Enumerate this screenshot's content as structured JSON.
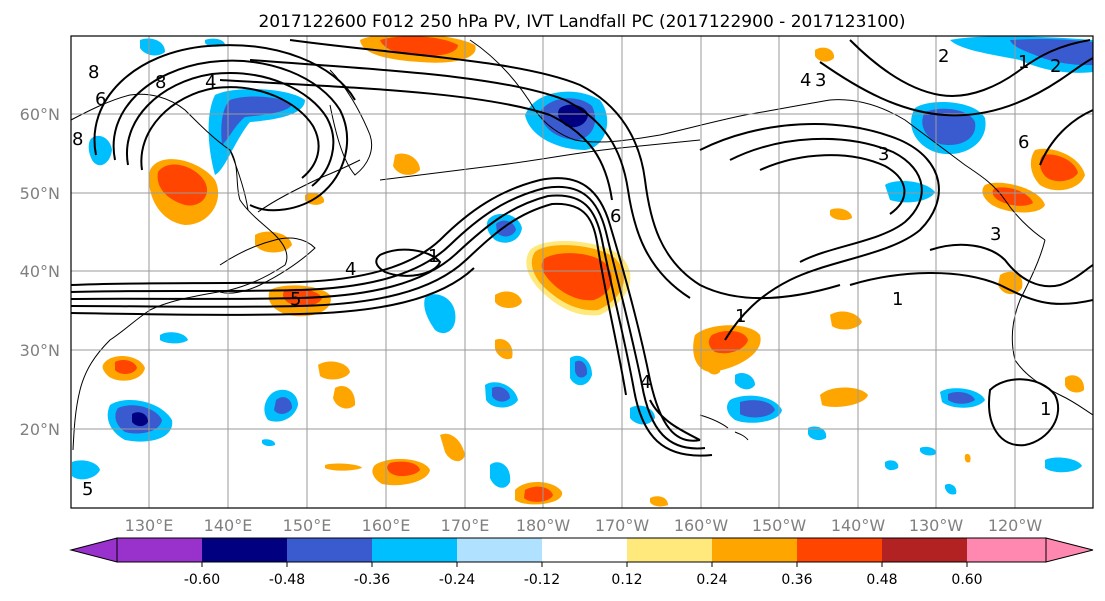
{
  "title": "2017122600 F012 250 hPa PV, IVT Landfall PC (2017122900 - 2017123100)",
  "lat_labels": [
    "60°N",
    "50°N",
    "40°N",
    "30°N",
    "20°N"
  ],
  "lon_labels": [
    "130°E",
    "140°E",
    "150°E",
    "160°E",
    "170°E",
    "180°W",
    "170°W",
    "160°W",
    "150°W",
    "140°W",
    "130°W",
    "120°W"
  ],
  "colorbar": {
    "labels": [
      "-0.60",
      "-0.48",
      "-0.36",
      "-0.24",
      "-0.12",
      "0.12",
      "0.24",
      "0.36",
      "0.48",
      "0.60"
    ],
    "under_color": "#9932cc",
    "over_color": "#ff88b0",
    "colors": [
      "#000080",
      "#3a5bd0",
      "#00bfff",
      "#b0e2ff",
      "#ffffff",
      "#ffe87c",
      "#ffa500",
      "#ff4500",
      "#b22222"
    ]
  },
  "contour_labels": [
    "8",
    "6",
    "4",
    "8",
    "5",
    "4",
    "1",
    "6",
    "4",
    "3",
    "2",
    "1",
    "3",
    "6",
    "1",
    "4",
    "1",
    "3",
    "2",
    "1",
    "8",
    "5"
  ],
  "map": {
    "lat_range": [
      "10°N",
      "70°N"
    ],
    "lon_range": [
      "120°E",
      "110°W"
    ],
    "gridlines": true,
    "fill_variable": "IVT Landfall PC",
    "contour_variable": "250 hPa PV"
  }
}
